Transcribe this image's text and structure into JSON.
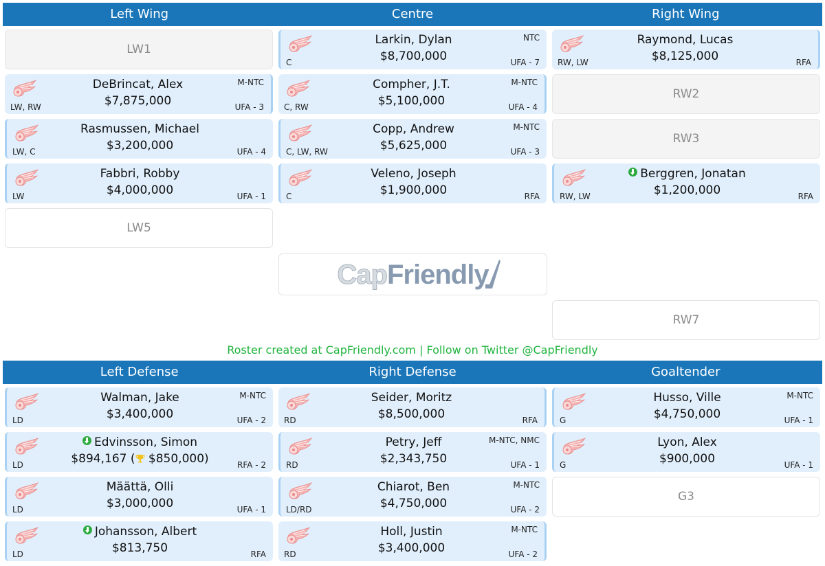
{
  "forwards_header": {
    "columns": [
      "Left Wing",
      "Centre",
      "Right Wing"
    ]
  },
  "defense_header": {
    "columns": [
      "Left Defense",
      "Right Defense",
      "Goaltender"
    ]
  },
  "team_logo_icon": "red-wings-logo",
  "colors": {
    "header_bg": "#1a76b9",
    "card_bg": "#e1effc",
    "card_accent": "#a9d1f3",
    "footer_text": "#1fb43e",
    "badge_green": "#2eab3f",
    "trophy_gold": "#f2c41a"
  },
  "left_wing": [
    {
      "type": "empty",
      "label": "LW1"
    },
    {
      "type": "player",
      "name": "DeBrincat, Alex",
      "salary": "$7,875,000",
      "pos": "LW, RW",
      "clause": "M-NTC",
      "status": "UFA - 3",
      "accent": "right"
    },
    {
      "type": "player",
      "name": "Rasmussen, Michael",
      "salary": "$3,200,000",
      "pos": "LW, C",
      "clause": "",
      "status": "UFA - 4",
      "accent": "left"
    },
    {
      "type": "player",
      "name": "Fabbri, Robby",
      "salary": "$4,000,000",
      "pos": "LW",
      "clause": "",
      "status": "UFA - 1",
      "accent": "left"
    },
    {
      "type": "extra",
      "label": "LW5"
    }
  ],
  "centre": [
    {
      "type": "player",
      "name": "Larkin, Dylan",
      "salary": "$8,700,000",
      "pos": "C",
      "clause": "NTC",
      "status": "UFA - 7",
      "accent": "left"
    },
    {
      "type": "player",
      "name": "Compher, J.T.",
      "salary": "$5,100,000",
      "pos": "C, RW",
      "clause": "M-NTC",
      "status": "UFA - 4",
      "accent": "right"
    },
    {
      "type": "player",
      "name": "Copp, Andrew",
      "salary": "$5,625,000",
      "pos": "C, LW, RW",
      "clause": "M-NTC",
      "status": "UFA - 3",
      "accent": "left"
    },
    {
      "type": "player",
      "name": "Veleno, Joseph",
      "salary": "$1,900,000",
      "pos": "C",
      "clause": "",
      "status": "RFA",
      "accent": "left"
    }
  ],
  "right_wing": [
    {
      "type": "player",
      "name": "Raymond, Lucas",
      "salary": "$8,125,000",
      "pos": "RW, LW",
      "clause": "",
      "status": "RFA",
      "accent": "right"
    },
    {
      "type": "empty",
      "label": "RW2"
    },
    {
      "type": "empty",
      "label": "RW3"
    },
    {
      "type": "player",
      "name": "Berggren, Jonatan",
      "salary": "$1,200,000",
      "pos": "RW, LW",
      "clause": "",
      "status": "RFA",
      "accent": "left",
      "badge": "green-down-arrow-icon"
    },
    {
      "type": "extra",
      "label": "RW7"
    }
  ],
  "left_defense": [
    {
      "type": "player",
      "name": "Walman, Jake",
      "salary": "$3,400,000",
      "pos": "LD",
      "clause": "M-NTC",
      "status": "UFA - 2",
      "accent": "left"
    },
    {
      "type": "player",
      "name": "Edvinsson, Simon",
      "salary": "$894,167 (",
      "salary_alt": "$850,000)",
      "pos": "LD",
      "clause": "",
      "status": "RFA - 2",
      "accent": "left",
      "badge": "green-down-arrow-icon",
      "salary_icon": "trophy-icon"
    },
    {
      "type": "player",
      "name": "Määttä, Olli",
      "salary": "$3,000,000",
      "pos": "LD",
      "clause": "",
      "status": "UFA - 1",
      "accent": "left"
    },
    {
      "type": "player",
      "name": "Johansson, Albert",
      "salary": "$813,750",
      "pos": "LD",
      "clause": "",
      "status": "RFA",
      "accent": "left",
      "badge": "green-down-arrow-icon"
    }
  ],
  "right_defense": [
    {
      "type": "player",
      "name": "Seider, Moritz",
      "salary": "$8,500,000",
      "pos": "RD",
      "clause": "",
      "status": "RFA",
      "accent": "right"
    },
    {
      "type": "player",
      "name": "Petry, Jeff",
      "salary": "$2,343,750",
      "pos": "RD",
      "clause": "M-NTC, NMC",
      "status": "UFA - 1",
      "accent": "left"
    },
    {
      "type": "player",
      "name": "Chiarot, Ben",
      "salary": "$4,750,000",
      "pos": "LD/RD",
      "clause": "M-NTC",
      "status": "UFA - 2",
      "accent": "left"
    },
    {
      "type": "player",
      "name": "Holl, Justin",
      "salary": "$3,400,000",
      "pos": "RD",
      "clause": "M-NTC",
      "status": "UFA - 2",
      "accent": "right"
    }
  ],
  "goaltender": [
    {
      "type": "player",
      "name": "Husso, Ville",
      "salary": "$4,750,000",
      "pos": "G",
      "clause": "M-NTC",
      "status": "UFA - 1",
      "accent": "left"
    },
    {
      "type": "player",
      "name": "Lyon, Alex",
      "salary": "$900,000",
      "pos": "G",
      "clause": "",
      "status": "UFA - 1",
      "accent": "left"
    },
    {
      "type": "extra",
      "label": "G3"
    }
  ],
  "brand_logo": {
    "part1": "Cap",
    "part2": "Friendly"
  },
  "footer": {
    "text": "Roster created at CapFriendly.com | Follow on Twitter @CapFriendly"
  }
}
